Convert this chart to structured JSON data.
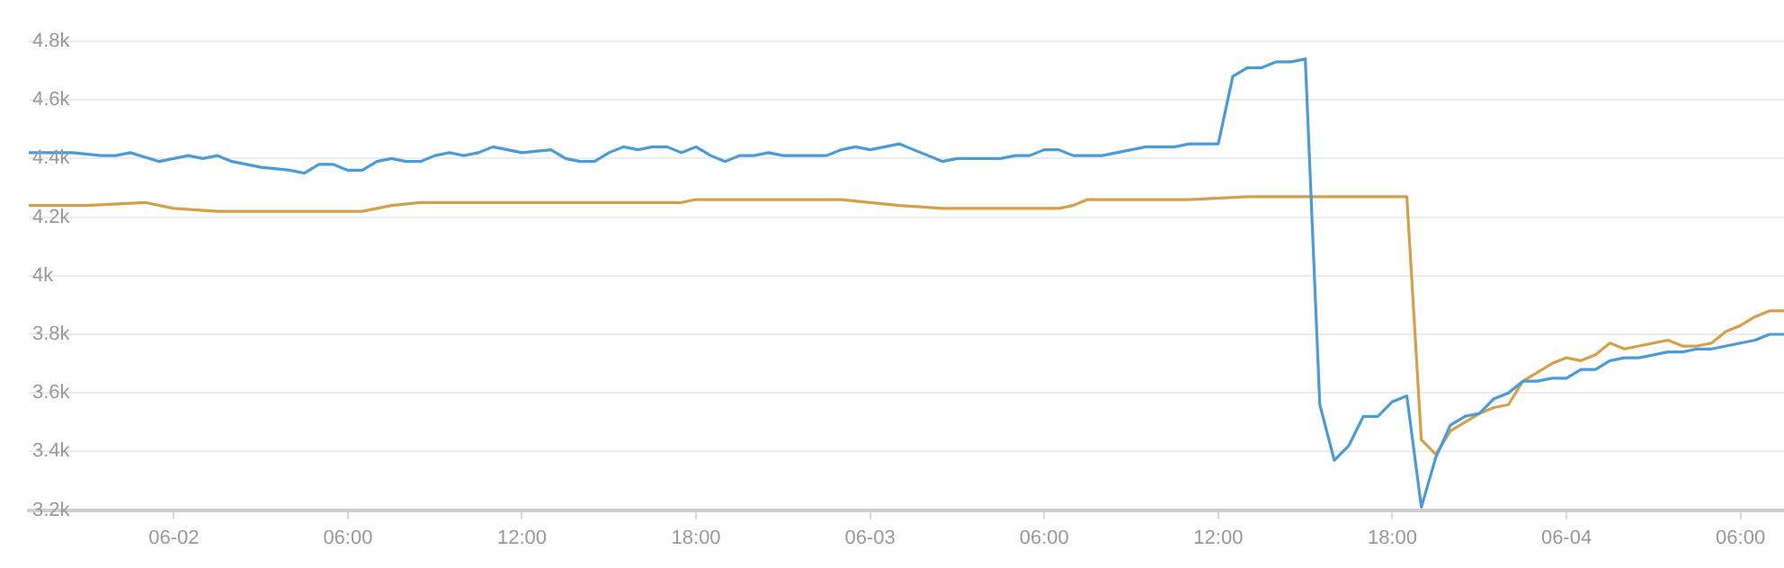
{
  "chart_data": {
    "type": "line",
    "xlim": [
      "--06-01T19:00",
      "--06-04T07:30"
    ],
    "xticks": [
      {
        "value": "--06-02",
        "label": "06-02"
      },
      {
        "value": "--06-02T06:00",
        "label": "06:00"
      },
      {
        "value": "--06-02T12:00",
        "label": "12:00"
      },
      {
        "value": "--06-02T18:00",
        "label": "18:00"
      },
      {
        "value": "--06-03",
        "label": "06-03"
      },
      {
        "value": "--06-03T06:00",
        "label": "06:00"
      },
      {
        "value": "--06-03T12:00",
        "label": "12:00"
      },
      {
        "value": "--06-03T18:00",
        "label": "18:00"
      },
      {
        "value": "--06-04",
        "label": "06-04"
      },
      {
        "value": "--06-04T06:00",
        "label": "06:00"
      }
    ],
    "ylim": [
      3200,
      4800
    ],
    "yticks": [
      {
        "value": 3200,
        "label": "3.2k"
      },
      {
        "value": 3400,
        "label": "3.4k"
      },
      {
        "value": 3600,
        "label": "3.6k"
      },
      {
        "value": 3800,
        "label": "3.8k"
      },
      {
        "value": 4000,
        "label": "4k"
      },
      {
        "value": 4200,
        "label": "4.2k"
      },
      {
        "value": 4400,
        "label": "4.4k"
      },
      {
        "value": 4600,
        "label": "4.6k"
      },
      {
        "value": 4800,
        "label": "4.8k"
      }
    ],
    "grid": "y",
    "legend": false,
    "marker": "none",
    "line_style": "solid",
    "series": [
      {
        "color": "#4a9bd6",
        "x": [
          "--06-01T19:00",
          "--06-01T20:30",
          "--06-01T21:30",
          "--06-01T22:00",
          "--06-01T22:30",
          "--06-01T23:30",
          "--06-02T00:00",
          "--06-02T00:30",
          "--06-02T01:00",
          "--06-02T01:30",
          "--06-02T02:00",
          "--06-02T02:30",
          "--06-02T03:00",
          "--06-02T04:00",
          "--06-02T04:30",
          "--06-02T05:00",
          "--06-02T05:30",
          "--06-02T06:00",
          "--06-02T06:30",
          "--06-02T07:00",
          "--06-02T07:30",
          "--06-02T08:00",
          "--06-02T08:30",
          "--06-02T09:00",
          "--06-02T09:30",
          "--06-02T10:00",
          "--06-02T10:30",
          "--06-02T11:00",
          "--06-02T11:30",
          "--06-02T12:00",
          "--06-02T13:00",
          "--06-02T13:30",
          "--06-02T14:00",
          "--06-02T14:30",
          "--06-02T15:00",
          "--06-02T15:30",
          "--06-02T16:00",
          "--06-02T16:30",
          "--06-02T17:00",
          "--06-02T17:30",
          "--06-02T18:00",
          "--06-02T18:30",
          "--06-02T19:00",
          "--06-02T19:30",
          "--06-02T20:00",
          "--06-02T20:30",
          "--06-02T21:00",
          "--06-02T21:30",
          "--06-02T22:30",
          "--06-02T23:00",
          "--06-02T23:30",
          "--06-03T00:00",
          "--06-03T00:30",
          "--06-03T01:00",
          "--06-03T01:30",
          "--06-03T02:00",
          "--06-03T02:30",
          "--06-03T03:00",
          "--06-03T03:30",
          "--06-03T04:30",
          "--06-03T05:00",
          "--06-03T05:30",
          "--06-03T06:00",
          "--06-03T06:30",
          "--06-03T07:00",
          "--06-03T07:30",
          "--06-03T08:00",
          "--06-03T08:30",
          "--06-03T09:00",
          "--06-03T09:30",
          "--06-03T10:00",
          "--06-03T10:30",
          "--06-03T11:00",
          "--06-03T12:00",
          "--06-03T12:30",
          "--06-03T13:00",
          "--06-03T13:30",
          "--06-03T14:00",
          "--06-03T14:30",
          "--06-03T15:00",
          "--06-03T15:30",
          "--06-03T16:00",
          "--06-03T16:30",
          "--06-03T17:00",
          "--06-03T17:30",
          "--06-03T18:00",
          "--06-03T18:30",
          "--06-03T19:00",
          "--06-03T19:30",
          "--06-03T20:00",
          "--06-03T20:30",
          "--06-03T21:00",
          "--06-03T21:30",
          "--06-03T22:00",
          "--06-03T22:30",
          "--06-03T23:00",
          "--06-03T23:30",
          "--06-04T00:00",
          "--06-04T00:30",
          "--06-04T01:00",
          "--06-04T01:30",
          "--06-04T02:00",
          "--06-04T02:30",
          "--06-04T03:00",
          "--06-04T03:30",
          "--06-04T04:00",
          "--06-04T04:30",
          "--06-04T05:00",
          "--06-04T05:30",
          "--06-04T06:00",
          "--06-04T06:30",
          "--06-04T07:00",
          "--06-04T07:30"
        ],
        "values": [
          4420,
          4420,
          4410,
          4410,
          4420,
          4390,
          4400,
          4410,
          4400,
          4410,
          4390,
          4380,
          4370,
          4360,
          4350,
          4380,
          4380,
          4360,
          4360,
          4390,
          4400,
          4390,
          4390,
          4410,
          4420,
          4410,
          4420,
          4440,
          4430,
          4420,
          4430,
          4400,
          4390,
          4390,
          4420,
          4440,
          4430,
          4440,
          4440,
          4420,
          4440,
          4410,
          4390,
          4410,
          4410,
          4420,
          4410,
          4410,
          4410,
          4430,
          4440,
          4430,
          4440,
          4450,
          4430,
          4410,
          4390,
          4400,
          4400,
          4400,
          4410,
          4410,
          4430,
          4430,
          4410,
          4410,
          4410,
          4420,
          4430,
          4440,
          4440,
          4440,
          4450,
          4450,
          4680,
          4710,
          4710,
          4730,
          4730,
          4740,
          3560,
          3370,
          3420,
          3520,
          3520,
          3570,
          3590,
          3210,
          3380,
          3490,
          3520,
          3530,
          3580,
          3600,
          3640,
          3640,
          3650,
          3650,
          3680,
          3680,
          3710,
          3720,
          3720,
          3730,
          3740,
          3740,
          3750,
          3750,
          3760,
          3770,
          3780,
          3800,
          3800
        ]
      },
      {
        "color": "#d4a04a",
        "x": [
          "--06-01T19:00",
          "--06-01T21:00",
          "--06-01T23:00",
          "--06-02T00:00",
          "--06-02T01:30",
          "--06-02T03:00",
          "--06-02T05:00",
          "--06-02T06:00",
          "--06-02T06:30",
          "--06-02T07:30",
          "--06-02T08:30",
          "--06-02T11:00",
          "--06-02T13:00",
          "--06-02T15:00",
          "--06-02T17:00",
          "--06-02T17:30",
          "--06-02T18:00",
          "--06-02T20:00",
          "--06-02T22:00",
          "--06-02T23:00",
          "--06-03T00:00",
          "--06-03T01:00",
          "--06-03T02:30",
          "--06-03T04:30",
          "--06-03T06:30",
          "--06-03T07:00",
          "--06-03T07:30",
          "--06-03T08:30",
          "--06-03T11:00",
          "--06-03T13:00",
          "--06-03T15:00",
          "--06-03T16:00",
          "--06-03T16:30",
          "--06-03T18:30",
          "--06-03T19:00",
          "--06-03T19:30",
          "--06-03T20:00",
          "--06-03T20:30",
          "--06-03T21:00",
          "--06-03T21:30",
          "--06-03T22:00",
          "--06-03T22:30",
          "--06-03T23:00",
          "--06-03T23:30",
          "--06-04T00:00",
          "--06-04T00:30",
          "--06-04T01:00",
          "--06-04T01:30",
          "--06-04T02:00",
          "--06-04T02:30",
          "--06-04T03:00",
          "--06-04T03:30",
          "--06-04T04:00",
          "--06-04T04:30",
          "--06-04T05:00",
          "--06-04T05:30",
          "--06-04T06:00",
          "--06-04T06:30",
          "--06-04T07:00",
          "--06-04T07:30"
        ],
        "values": [
          4240,
          4240,
          4250,
          4230,
          4220,
          4220,
          4220,
          4220,
          4220,
          4240,
          4250,
          4250,
          4250,
          4250,
          4250,
          4250,
          4260,
          4260,
          4260,
          4260,
          4250,
          4240,
          4230,
          4230,
          4230,
          4240,
          4260,
          4260,
          4260,
          4270,
          4270,
          4270,
          4270,
          4270,
          3440,
          3390,
          3470,
          3500,
          3530,
          3550,
          3560,
          3640,
          3670,
          3700,
          3720,
          3710,
          3730,
          3770,
          3750,
          3760,
          3770,
          3780,
          3760,
          3760,
          3770,
          3810,
          3830,
          3860,
          3880,
          3880
        ]
      }
    ]
  }
}
